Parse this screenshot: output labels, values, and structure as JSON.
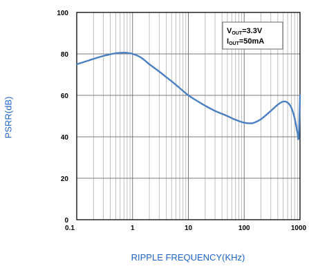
{
  "chart_data": {
    "type": "line",
    "xlabel": "RIPPLE FREQUENCY(KHz)",
    "ylabel": "PSRR(dB)",
    "x_scale": "log",
    "xlim": [
      0.1,
      1000
    ],
    "ylim": [
      0,
      100
    ],
    "grid": true,
    "x_ticks": [
      0.1,
      1,
      10,
      100,
      1000
    ],
    "x_tick_labels": [
      "0.1",
      "1",
      "10",
      "100",
      "1000"
    ],
    "y_ticks": [
      0,
      20,
      40,
      60,
      80,
      100
    ],
    "y_tick_labels": [
      "0",
      "20",
      "40",
      "60",
      "80",
      "100"
    ],
    "annotations": [
      {
        "base": "V",
        "sub": "OUT",
        "rest": "=3.3V"
      },
      {
        "base": "I",
        "sub": "OUT",
        "rest": "=50mA"
      }
    ],
    "colors": {
      "line": "#4a7fc1",
      "grid": "#b0b0b0",
      "axis_titles": "#1f63c6"
    },
    "series": [
      {
        "x": [
          0.1,
          0.15,
          0.2,
          0.3,
          0.4,
          0.5,
          0.6,
          0.7,
          0.8,
          1,
          1.3,
          1.6,
          2,
          3,
          4,
          5,
          7,
          10,
          15,
          20,
          30,
          50,
          70,
          100,
          130,
          150,
          200,
          300,
          400,
          500,
          600,
          700,
          800,
          900,
          950,
          1000
        ],
        "y": [
          75,
          76.5,
          77.6,
          79,
          79.8,
          80.3,
          80.5,
          80.6,
          80.5,
          80,
          78.8,
          77.2,
          75,
          71.5,
          68.8,
          66.8,
          63.5,
          60,
          57,
          55,
          52.5,
          50,
          48.2,
          46.8,
          46.5,
          46.8,
          48.5,
          52.5,
          55.5,
          57,
          56.5,
          54,
          49,
          42,
          40,
          60
        ]
      }
    ]
  }
}
